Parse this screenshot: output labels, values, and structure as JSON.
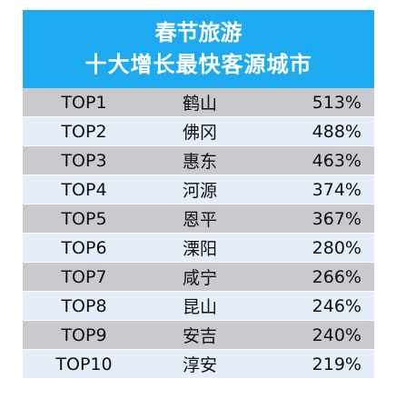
{
  "header": {
    "line1": "春节旅游",
    "line2": "十大增长最快客源城市"
  },
  "chart_data": {
    "type": "table",
    "title": "春节旅游 十大增长最快客源城市",
    "rows": [
      {
        "rank": "TOP1",
        "city": "鹤山",
        "growth": "513%"
      },
      {
        "rank": "TOP2",
        "city": "佛冈",
        "growth": "488%"
      },
      {
        "rank": "TOP3",
        "city": "惠东",
        "growth": "463%"
      },
      {
        "rank": "TOP4",
        "city": "河源",
        "growth": "374%"
      },
      {
        "rank": "TOP5",
        "city": "恩平",
        "growth": "367%"
      },
      {
        "rank": "TOP6",
        "city": "溧阳",
        "growth": "280%"
      },
      {
        "rank": "TOP7",
        "city": "咸宁",
        "growth": "266%"
      },
      {
        "rank": "TOP8",
        "city": "昆山",
        "growth": "246%"
      },
      {
        "rank": "TOP9",
        "city": "安吉",
        "growth": "240%"
      },
      {
        "rank": "TOP10",
        "city": "淳安",
        "growth": "219%"
      }
    ],
    "colors": {
      "header": "#1eaaf1",
      "row_dark": "#c9c9ce",
      "row_light": "#e4edf9"
    }
  }
}
